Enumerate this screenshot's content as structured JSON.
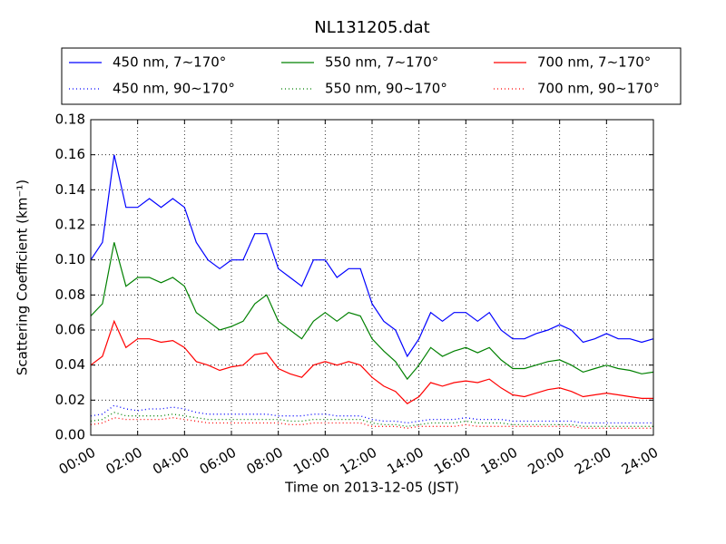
{
  "chart_data": {
    "type": "line",
    "title": "NL131205.dat",
    "x_label": "Time on 2013-12-05 (JST)",
    "y_label": "Scattering Coefficient (km⁻¹)",
    "x": [
      "00:00",
      "00:30",
      "01:00",
      "01:30",
      "02:00",
      "02:30",
      "03:00",
      "03:30",
      "04:00",
      "04:30",
      "05:00",
      "05:30",
      "06:00",
      "06:30",
      "07:00",
      "07:30",
      "08:00",
      "08:30",
      "09:00",
      "09:30",
      "10:00",
      "10:30",
      "11:00",
      "11:30",
      "12:00",
      "12:30",
      "13:00",
      "13:30",
      "14:00",
      "14:30",
      "15:00",
      "15:30",
      "16:00",
      "16:30",
      "17:00",
      "17:30",
      "18:00",
      "18:30",
      "19:00",
      "19:30",
      "20:00",
      "20:30",
      "21:00",
      "21:30",
      "22:00",
      "22:30",
      "23:00",
      "23:30",
      "24:00"
    ],
    "xlim": [
      "00:00",
      "24:00"
    ],
    "xticks": [
      "00:00",
      "02:00",
      "04:00",
      "06:00",
      "08:00",
      "10:00",
      "12:00",
      "14:00",
      "16:00",
      "18:00",
      "20:00",
      "22:00",
      "24:00"
    ],
    "ylim": [
      0,
      0.18
    ],
    "yticks": [
      {
        "value": 0,
        "label": "0.00"
      },
      0.02,
      0.04,
      0.06,
      0.08,
      {
        "value": 0.1,
        "label": "0.10"
      },
      0.12,
      0.14,
      0.16,
      0.18
    ],
    "grid": true,
    "legend_position": "top",
    "legend_columns": 3,
    "series": [
      {
        "name": "450 nm, 7∼170°",
        "color": "#0000ff",
        "style": "solid",
        "values": [
          0.1,
          0.11,
          0.16,
          0.13,
          0.13,
          0.135,
          0.13,
          0.135,
          0.13,
          0.11,
          0.1,
          0.095,
          0.1,
          0.1,
          0.115,
          0.115,
          0.095,
          0.09,
          0.085,
          0.1,
          0.1,
          0.09,
          0.095,
          0.095,
          0.075,
          0.065,
          0.06,
          0.045,
          0.055,
          0.07,
          0.065,
          0.07,
          0.07,
          0.065,
          0.07,
          0.06,
          0.055,
          0.055,
          0.058,
          0.06,
          0.063,
          0.06,
          0.053,
          0.055,
          0.058,
          0.055,
          0.055,
          0.053,
          0.055
        ]
      },
      {
        "name": "450 nm, 90∼170°",
        "color": "#0000ff",
        "style": "dotted",
        "values": [
          0.011,
          0.012,
          0.017,
          0.015,
          0.014,
          0.015,
          0.015,
          0.016,
          0.015,
          0.013,
          0.012,
          0.012,
          0.012,
          0.012,
          0.012,
          0.012,
          0.011,
          0.011,
          0.011,
          0.012,
          0.012,
          0.011,
          0.011,
          0.011,
          0.009,
          0.008,
          0.008,
          0.007,
          0.008,
          0.009,
          0.009,
          0.009,
          0.01,
          0.009,
          0.009,
          0.009,
          0.008,
          0.008,
          0.008,
          0.008,
          0.008,
          0.008,
          0.007,
          0.007,
          0.007,
          0.007,
          0.007,
          0.007,
          0.007
        ]
      },
      {
        "name": "550 nm, 7∼170°",
        "color": "#008000",
        "style": "solid",
        "values": [
          0.068,
          0.075,
          0.11,
          0.085,
          0.09,
          0.09,
          0.087,
          0.09,
          0.085,
          0.07,
          0.065,
          0.06,
          0.062,
          0.065,
          0.075,
          0.08,
          0.065,
          0.06,
          0.055,
          0.065,
          0.07,
          0.065,
          0.07,
          0.068,
          0.055,
          0.048,
          0.042,
          0.032,
          0.04,
          0.05,
          0.045,
          0.048,
          0.05,
          0.047,
          0.05,
          0.043,
          0.038,
          0.038,
          0.04,
          0.042,
          0.043,
          0.04,
          0.036,
          0.038,
          0.04,
          0.038,
          0.037,
          0.035,
          0.036
        ]
      },
      {
        "name": "550 nm, 90∼170°",
        "color": "#008000",
        "style": "dotted",
        "values": [
          0.008,
          0.009,
          0.013,
          0.011,
          0.011,
          0.011,
          0.011,
          0.012,
          0.011,
          0.01,
          0.009,
          0.009,
          0.009,
          0.009,
          0.009,
          0.009,
          0.009,
          0.008,
          0.008,
          0.009,
          0.009,
          0.009,
          0.009,
          0.009,
          0.007,
          0.006,
          0.006,
          0.005,
          0.006,
          0.007,
          0.007,
          0.007,
          0.008,
          0.007,
          0.007,
          0.007,
          0.006,
          0.006,
          0.006,
          0.006,
          0.006,
          0.006,
          0.005,
          0.005,
          0.005,
          0.005,
          0.005,
          0.005,
          0.005
        ]
      },
      {
        "name": "700 nm, 7∼170°",
        "color": "#ff0000",
        "style": "solid",
        "values": [
          0.04,
          0.045,
          0.065,
          0.05,
          0.055,
          0.055,
          0.053,
          0.054,
          0.05,
          0.042,
          0.04,
          0.037,
          0.039,
          0.04,
          0.046,
          0.047,
          0.038,
          0.035,
          0.033,
          0.04,
          0.042,
          0.04,
          0.042,
          0.04,
          0.033,
          0.028,
          0.025,
          0.018,
          0.022,
          0.03,
          0.028,
          0.03,
          0.031,
          0.03,
          0.032,
          0.027,
          0.023,
          0.022,
          0.024,
          0.026,
          0.027,
          0.025,
          0.022,
          0.023,
          0.024,
          0.023,
          0.022,
          0.021,
          0.021
        ]
      },
      {
        "name": "700 nm, 90∼170°",
        "color": "#ff0000",
        "style": "dotted",
        "values": [
          0.006,
          0.007,
          0.01,
          0.009,
          0.009,
          0.009,
          0.009,
          0.01,
          0.009,
          0.008,
          0.007,
          0.007,
          0.007,
          0.007,
          0.007,
          0.007,
          0.007,
          0.006,
          0.006,
          0.007,
          0.007,
          0.007,
          0.007,
          0.007,
          0.005,
          0.005,
          0.005,
          0.004,
          0.005,
          0.005,
          0.005,
          0.005,
          0.006,
          0.005,
          0.005,
          0.005,
          0.005,
          0.005,
          0.005,
          0.005,
          0.005,
          0.005,
          0.004,
          0.004,
          0.004,
          0.004,
          0.004,
          0.004,
          0.004
        ]
      }
    ]
  }
}
